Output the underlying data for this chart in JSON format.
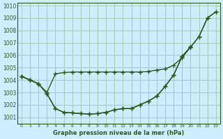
{
  "bg_color": "#cceeff",
  "grid_color": "#aaccbb",
  "line_color": "#2d5a1b",
  "title": "Graphe pression niveau de la mer (hPa)",
  "ylim": [
    1000.5,
    1010.2
  ],
  "xlim": [
    -0.5,
    23.5
  ],
  "yticks": [
    1001,
    1002,
    1003,
    1004,
    1005,
    1006,
    1007,
    1008,
    1009,
    1010
  ],
  "xticks": [
    0,
    1,
    2,
    3,
    4,
    5,
    6,
    7,
    8,
    9,
    10,
    11,
    12,
    13,
    14,
    15,
    16,
    17,
    18,
    19,
    20,
    21,
    22,
    23
  ],
  "series1": [
    1004.3,
    1004.0,
    1003.7,
    1002.9,
    1001.7,
    1001.4,
    1001.35,
    1001.3,
    1001.25,
    1001.3,
    1001.4,
    1001.6,
    1001.7,
    1001.7,
    1002.0,
    1002.3,
    1002.7,
    1003.5,
    1004.4,
    1005.9,
    1006.7,
    null,
    null,
    null
  ],
  "series2": [
    1004.3,
    1004.0,
    1003.7,
    1002.9,
    1001.7,
    1001.4,
    1001.35,
    1001.3,
    1001.25,
    1001.3,
    1001.4,
    1001.6,
    1001.7,
    1001.7,
    1002.0,
    1002.3,
    1002.7,
    1003.5,
    1004.4,
    1005.9,
    1006.65,
    1007.5,
    1009.0,
    1009.5
  ],
  "series3": [
    1004.3,
    1004.0,
    1003.7,
    1003.0,
    1004.5,
    1004.6,
    1004.65,
    1004.65,
    1004.65,
    1004.65,
    1004.65,
    1004.65,
    1004.65,
    1004.65,
    1004.65,
    1004.7,
    1004.8,
    1004.9,
    1005.2,
    1005.8,
    1006.65,
    1007.5,
    1009.0,
    1009.5
  ]
}
